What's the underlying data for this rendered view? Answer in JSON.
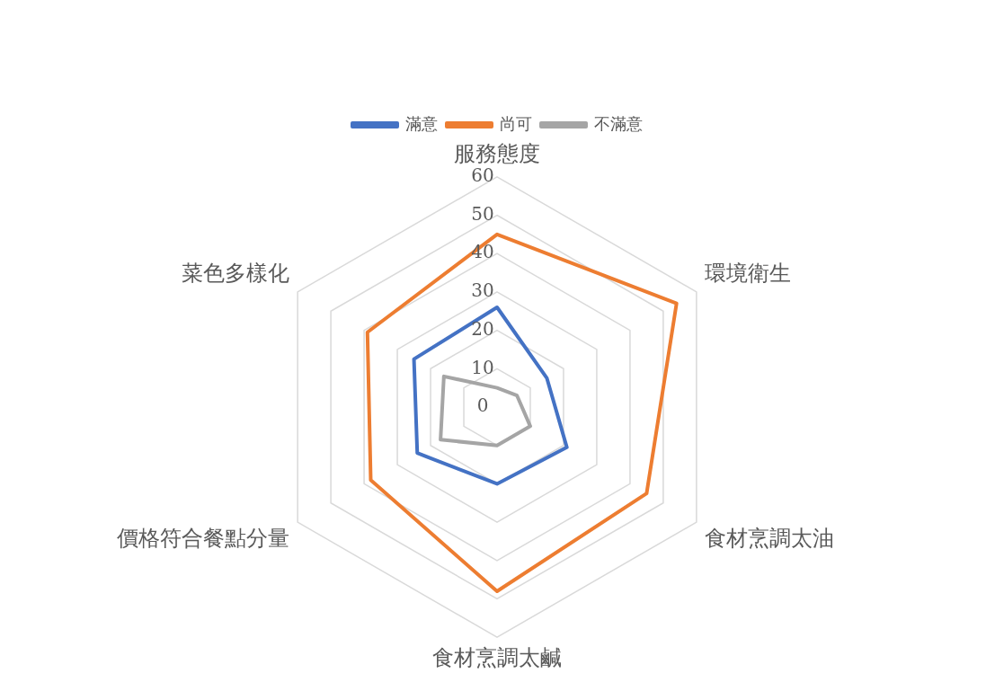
{
  "chart_data": {
    "type": "radar",
    "categories": [
      "服務態度",
      "環境衛生",
      "食材烹調太油",
      "食材烹調太鹹",
      "價格符合餐點分量",
      "菜色多樣化"
    ],
    "series": [
      {
        "name": "滿意",
        "color": "#4472c4",
        "values": [
          26,
          15,
          21,
          20,
          24,
          25
        ]
      },
      {
        "name": "尚可",
        "color": "#ed7d31",
        "values": [
          45,
          54,
          45,
          48,
          38,
          39
        ]
      },
      {
        "name": "不滿意",
        "color": "#a5a5a5",
        "values": [
          5,
          6,
          10,
          10,
          17,
          16
        ]
      }
    ],
    "ylim": [
      0,
      60
    ],
    "yticks": [
      0,
      10,
      20,
      30,
      40,
      50,
      60
    ],
    "grid": true,
    "legend": "top",
    "marker": "none"
  }
}
